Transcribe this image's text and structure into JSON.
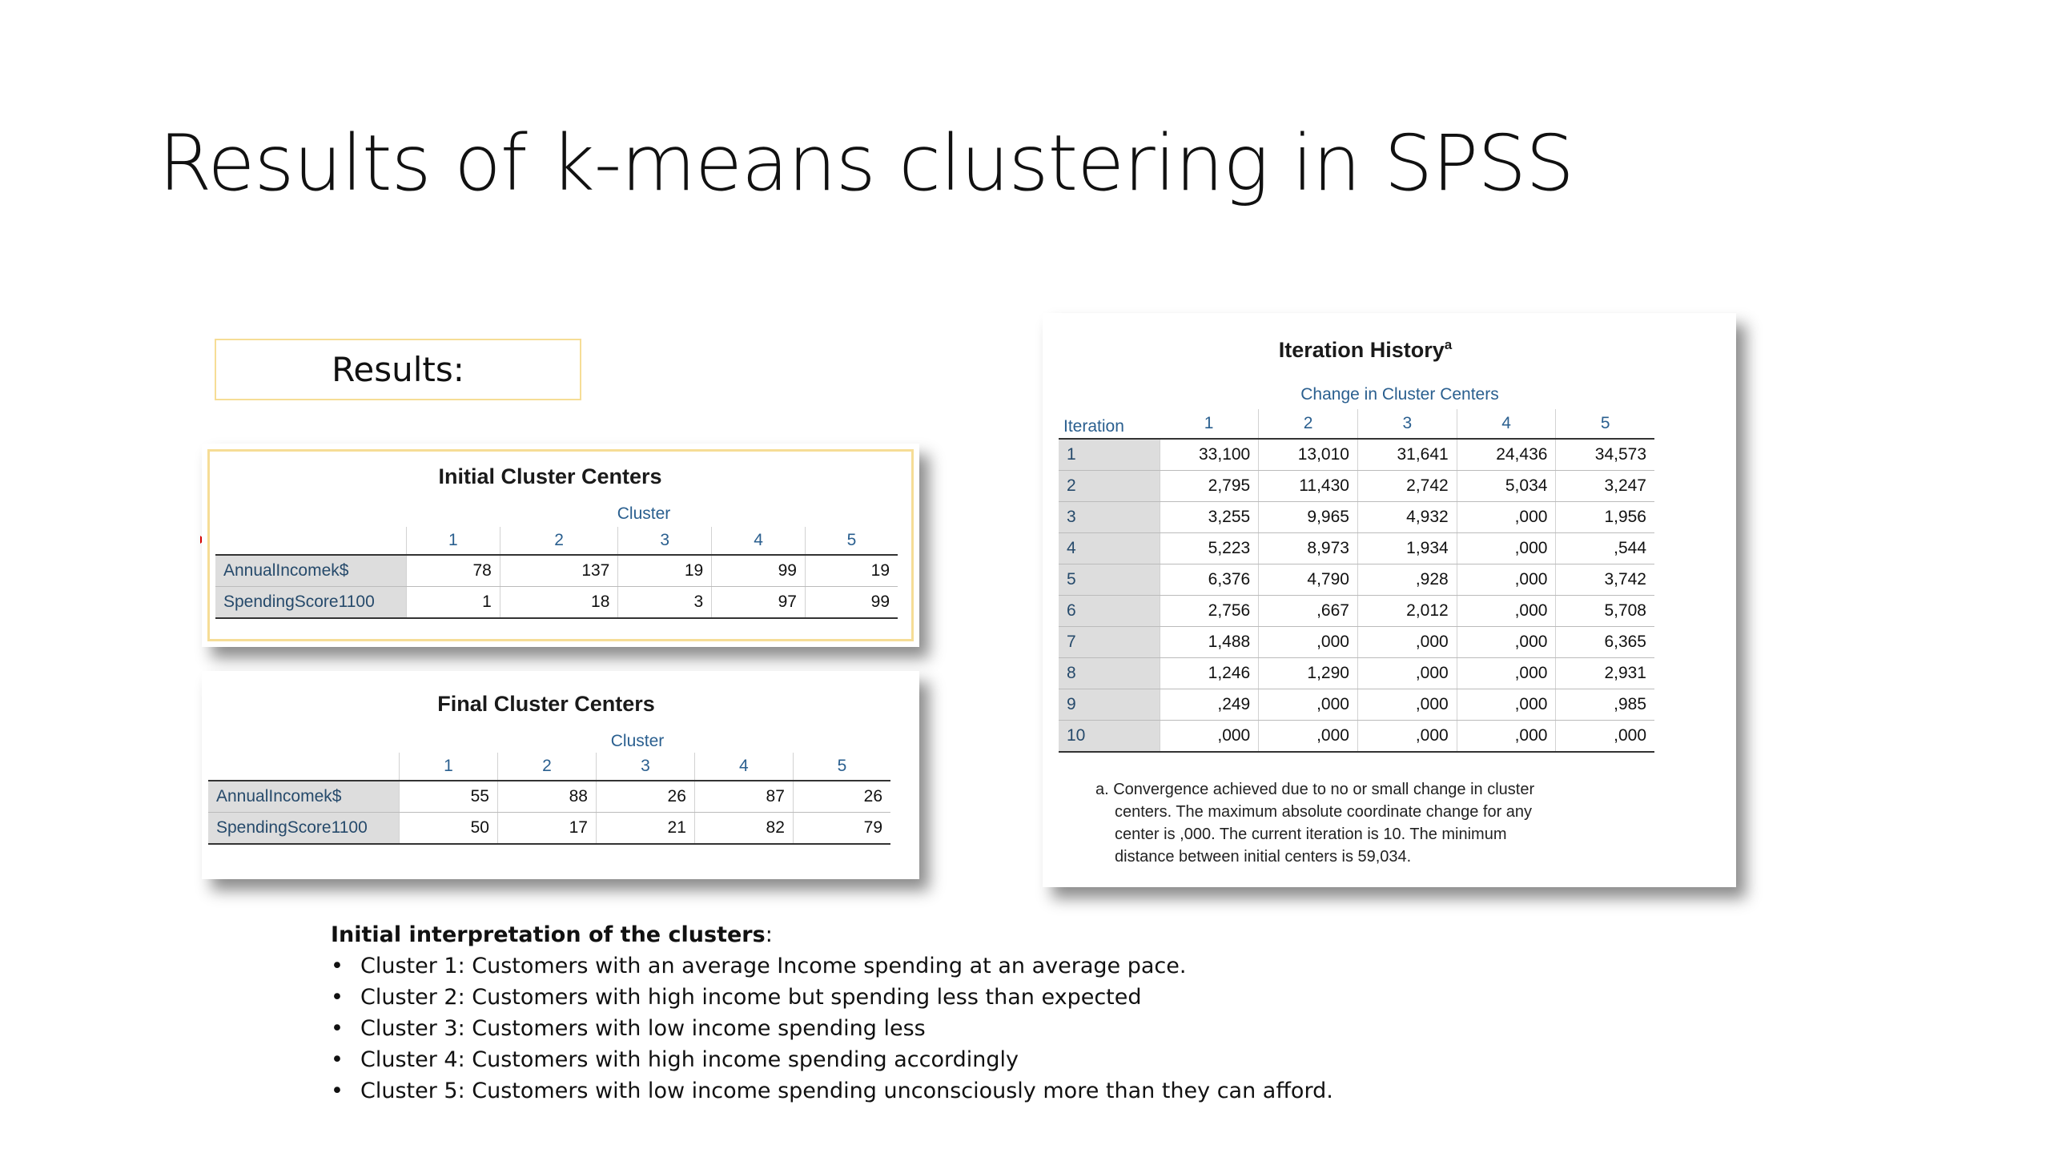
{
  "slide": {
    "title": "Results of k-means clustering in SPSS"
  },
  "results_label": "Results:",
  "initial_centers": {
    "title": "Initial Cluster Centers",
    "group_label": "Cluster",
    "columns": [
      "1",
      "2",
      "3",
      "4",
      "5"
    ],
    "rows": [
      {
        "label": "AnnualIncomek$",
        "values": [
          "78",
          "137",
          "19",
          "99",
          "19"
        ]
      },
      {
        "label": "SpendingScore1100",
        "values": [
          "1",
          "18",
          "3",
          "97",
          "99"
        ]
      }
    ]
  },
  "final_centers": {
    "title": "Final Cluster Centers",
    "group_label": "Cluster",
    "columns": [
      "1",
      "2",
      "3",
      "4",
      "5"
    ],
    "rows": [
      {
        "label": "AnnualIncomek$",
        "values": [
          "55",
          "88",
          "26",
          "87",
          "26"
        ]
      },
      {
        "label": "SpendingScore1100",
        "values": [
          "50",
          "17",
          "21",
          "82",
          "79"
        ]
      }
    ]
  },
  "iteration_history": {
    "title": "Iteration History",
    "title_sup": "a",
    "group_label": "Change in Cluster Centers",
    "row_header": "Iteration",
    "columns": [
      "1",
      "2",
      "3",
      "4",
      "5"
    ],
    "rows": [
      {
        "label": "1",
        "values": [
          "33,100",
          "13,010",
          "31,641",
          "24,436",
          "34,573"
        ]
      },
      {
        "label": "2",
        "values": [
          "2,795",
          "11,430",
          "2,742",
          "5,034",
          "3,247"
        ]
      },
      {
        "label": "3",
        "values": [
          "3,255",
          "9,965",
          "4,932",
          ",000",
          "1,956"
        ]
      },
      {
        "label": "4",
        "values": [
          "5,223",
          "8,973",
          "1,934",
          ",000",
          ",544"
        ]
      },
      {
        "label": "5",
        "values": [
          "6,376",
          "4,790",
          ",928",
          ",000",
          "3,742"
        ]
      },
      {
        "label": "6",
        "values": [
          "2,756",
          ",667",
          "2,012",
          ",000",
          "5,708"
        ]
      },
      {
        "label": "7",
        "values": [
          "1,488",
          ",000",
          ",000",
          ",000",
          "6,365"
        ]
      },
      {
        "label": "8",
        "values": [
          "1,246",
          "1,290",
          ",000",
          ",000",
          "2,931"
        ]
      },
      {
        "label": "9",
        "values": [
          ",249",
          ",000",
          ",000",
          ",000",
          ",985"
        ]
      },
      {
        "label": "10",
        "values": [
          ",000",
          ",000",
          ",000",
          ",000",
          ",000"
        ]
      }
    ],
    "footnote": [
      "a. Convergence achieved due to no or small change in cluster",
      "centers. The maximum absolute coordinate change for any",
      "center is ,000. The current iteration is 10. The minimum",
      "distance between initial centers is 59,034."
    ]
  },
  "interpretation": {
    "heading": "Initial interpretation of the clusters",
    "heading_suffix": ":",
    "bullet": "•",
    "items": [
      "Cluster 1: Customers with an average Income spending at an average pace.",
      "Cluster 2: Customers with high income but spending less than expected",
      "Cluster 3: Customers with low income spending less",
      "Cluster 4: Customers with high income spending accordingly",
      "Cluster 5: Customers with low income spending unconsciously more than they can afford."
    ]
  }
}
